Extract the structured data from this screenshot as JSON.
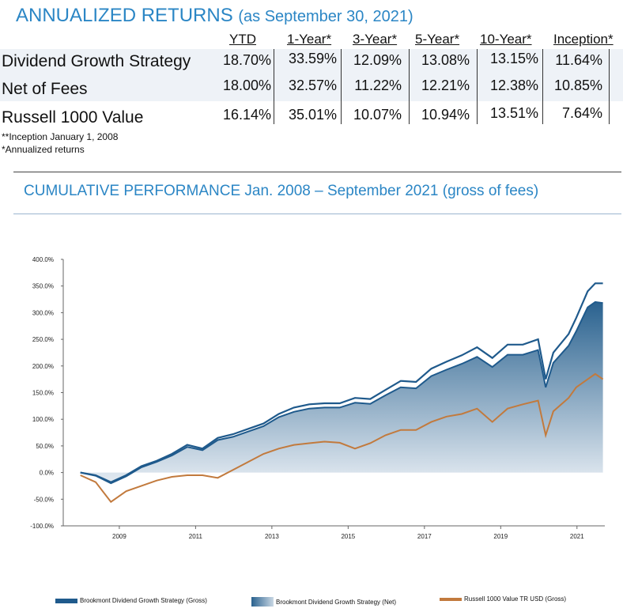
{
  "annualized": {
    "title": "ANNUALIZED RETURNS",
    "subtitle": "(as September 30, 2021)",
    "columns": [
      "YTD",
      "1-Year*",
      "3-Year*",
      "5-Year*",
      "10-Year*",
      "Inception*"
    ],
    "rows": [
      {
        "label": "Dividend Growth Strategy",
        "values": [
          "18.70%",
          "33.59%",
          "12.09%",
          "13.08%",
          "13.15%",
          "11.64%"
        ]
      },
      {
        "label": "Net of Fees",
        "values": [
          "18.00%",
          "32.57%",
          "11.22%",
          "12.21%",
          "12.38%",
          "10.85%"
        ]
      },
      {
        "label": "Russell 1000 Value",
        "values": [
          "16.14%",
          "35.01%",
          "10.07%",
          "10.94%",
          "13.51%",
          "7.64%"
        ]
      }
    ],
    "notes": [
      "**Inception January 1, 2008",
      "*Annualized returns"
    ]
  },
  "cumulative": {
    "title": "CUMULATIVE PERFORMANCE Jan. 2008 – September 2021 (gross of fees)"
  },
  "colors": {
    "title": "#2b86c5",
    "gross": "#1f5a8c",
    "net_fill_top": "#2a628f",
    "net_fill_bottom": "#e4ebf2",
    "russell": "#c27a3d"
  },
  "chart_data": {
    "type": "area",
    "ylim": [
      -100,
      400
    ],
    "y_ticks": [
      "400.0%",
      "350.0%",
      "300.0%",
      "250.0%",
      "200.0%",
      "150.0%",
      "100.0%",
      "50.0%",
      "0.0%",
      "-50.0%",
      "-100.0%"
    ],
    "x_ticks": [
      "2009",
      "2011",
      "2013",
      "2015",
      "2017",
      "2019",
      "2021"
    ],
    "grid": false,
    "legend_position": "bottom",
    "x": [
      2008.0,
      2008.4,
      2008.8,
      2009.2,
      2009.6,
      2010.0,
      2010.4,
      2010.8,
      2011.2,
      2011.6,
      2012.0,
      2012.4,
      2012.8,
      2013.2,
      2013.6,
      2014.0,
      2014.4,
      2014.8,
      2015.2,
      2015.6,
      2016.0,
      2016.4,
      2016.8,
      2017.2,
      2017.6,
      2018.0,
      2018.4,
      2018.8,
      2019.2,
      2019.6,
      2020.0,
      2020.2,
      2020.4,
      2020.8,
      2021.0,
      2021.3,
      2021.5,
      2021.7
    ],
    "series": [
      {
        "name": "Brookmont Dividend Growth Strategy (Gross)",
        "values": [
          0,
          -5,
          -18,
          -5,
          12,
          22,
          35,
          52,
          45,
          65,
          72,
          82,
          92,
          110,
          122,
          128,
          130,
          130,
          140,
          138,
          155,
          172,
          170,
          195,
          208,
          220,
          235,
          215,
          240,
          240,
          250,
          175,
          225,
          260,
          290,
          340,
          355,
          355
        ]
      },
      {
        "name": "Brookmont Dividend Growth Strategy (Net)",
        "values": [
          0,
          -6,
          -20,
          -7,
          10,
          20,
          32,
          48,
          42,
          61,
          67,
          77,
          87,
          104,
          114,
          120,
          122,
          122,
          131,
          129,
          145,
          160,
          158,
          181,
          193,
          204,
          217,
          198,
          221,
          221,
          230,
          160,
          206,
          238,
          265,
          310,
          320,
          318
        ]
      },
      {
        "name": "Russell 1000 Value TR USD (Gross)",
        "values": [
          -5,
          -18,
          -55,
          -35,
          -25,
          -15,
          -8,
          -5,
          -5,
          -10,
          5,
          20,
          35,
          45,
          52,
          55,
          58,
          56,
          45,
          55,
          70,
          80,
          80,
          95,
          105,
          110,
          120,
          95,
          120,
          128,
          135,
          70,
          115,
          140,
          160,
          175,
          185,
          175
        ]
      }
    ]
  }
}
